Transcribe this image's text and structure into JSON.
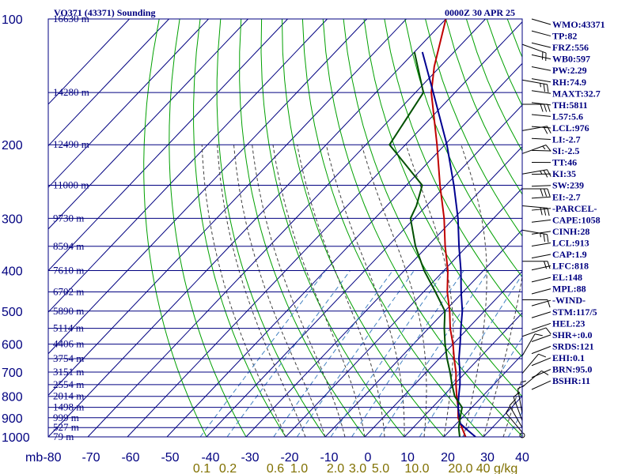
{
  "header": {
    "station": "VO371 (43371) Sounding",
    "time": "0000Z 30 APR 25"
  },
  "indices": [
    "WMO:43371",
    "TP:82",
    "FRZ:556",
    "WB0:597",
    "PW:2.29",
    "RH:74.9",
    "MAXT:32.7",
    "TH:5811",
    "L57:5.6",
    "LCL:976",
    "LI:-2.7",
    "SI:-2.5",
    "TT:46",
    "KI:35",
    "SW:239",
    "EI:-2.7",
    "-PARCEL-",
    "CAPE:1058",
    "CINH:28",
    "LCL:913",
    "CAP:1.9",
    "LFC:818",
    "EL:148",
    "MPL:88",
    "-WIND-",
    "STM:117/5",
    "HEL:23",
    "SHR+:0.0",
    "SRDS:121",
    "EHI:0.1",
    "BRN:95.0",
    "BSHR:11"
  ],
  "chart_data": {
    "type": "line",
    "title": "VO371 (43371) Sounding",
    "y_axis_unit": "mb",
    "y_scale": "log",
    "ylim": [
      1000,
      100
    ],
    "xlim": [
      -80,
      40
    ],
    "pressure_ticks": [
      "100",
      "200",
      "300",
      "400",
      "500",
      "600",
      "700",
      "800",
      "900",
      "1000"
    ],
    "temperature_ticks": [
      "-80",
      "-70",
      "-60",
      "-50",
      "-40",
      "-30",
      "-20",
      "-10",
      "0",
      "10",
      "20",
      "30",
      "40"
    ],
    "height_labels": [
      {
        "p": 100,
        "label": "16630 m"
      },
      {
        "p": 150,
        "label": "14280 m"
      },
      {
        "p": 200,
        "label": "12490 m"
      },
      {
        "p": 250,
        "label": "11000 m"
      },
      {
        "p": 300,
        "label": "9730 m"
      },
      {
        "p": 350,
        "label": "8594 m"
      },
      {
        "p": 400,
        "label": "7610 m"
      },
      {
        "p": 450,
        "label": "6702 m"
      },
      {
        "p": 500,
        "label": "5890 m"
      },
      {
        "p": 550,
        "label": "5114 m"
      },
      {
        "p": 600,
        "label": "4406 m"
      },
      {
        "p": 650,
        "label": "3754 m"
      },
      {
        "p": 700,
        "label": "3151 m"
      },
      {
        "p": 750,
        "label": "2554 m"
      },
      {
        "p": 800,
        "label": "2014 m"
      },
      {
        "p": 850,
        "label": "1498 m"
      },
      {
        "p": 900,
        "label": "999 m"
      },
      {
        "p": 950,
        "label": "527 m"
      },
      {
        "p": 1000,
        "label": "79 m"
      }
    ],
    "mixing_ratio_labels": [
      "0.1",
      "0.2",
      "0.6",
      "1.0",
      "2.0",
      "3.0",
      "5.0",
      "10.0",
      "20.0",
      "40 g/kg"
    ],
    "mixing_ratio_values": [
      0.1,
      0.2,
      0.6,
      1.0,
      2.0,
      3.0,
      5.0,
      10.0,
      20.0,
      40.0
    ],
    "series": [
      {
        "color": "#c00000",
        "points": [
          [
            1000,
            25.5
          ],
          [
            950,
            22.3
          ],
          [
            900,
            19
          ],
          [
            850,
            16.5
          ],
          [
            800,
            13.5
          ],
          [
            750,
            10.5
          ],
          [
            700,
            7.5
          ],
          [
            650,
            3.8
          ],
          [
            600,
            0
          ],
          [
            550,
            -4.5
          ],
          [
            500,
            -8.8
          ],
          [
            450,
            -14
          ],
          [
            400,
            -19
          ],
          [
            350,
            -25.5
          ],
          [
            300,
            -32.5
          ],
          [
            250,
            -41.5
          ],
          [
            200,
            -52
          ],
          [
            150,
            -66
          ],
          [
            130,
            -71.5
          ],
          [
            100,
            -80
          ]
        ]
      },
      {
        "color": "#000090",
        "points": [
          [
            1000,
            28
          ],
          [
            960,
            24
          ],
          [
            930,
            21
          ],
          [
            900,
            19.3
          ],
          [
            850,
            16.5
          ],
          [
            800,
            14
          ],
          [
            750,
            11.5
          ],
          [
            700,
            8.5
          ],
          [
            650,
            5
          ],
          [
            600,
            1.8
          ],
          [
            550,
            -1.8
          ],
          [
            500,
            -5.6
          ],
          [
            450,
            -10.5
          ],
          [
            400,
            -15.7
          ],
          [
            350,
            -22
          ],
          [
            300,
            -29
          ],
          [
            250,
            -38
          ],
          [
            200,
            -49.5
          ],
          [
            150,
            -65.5
          ],
          [
            120,
            -78
          ]
        ]
      },
      {
        "color": "#005000",
        "points": [
          [
            1000,
            24
          ],
          [
            950,
            21.5
          ],
          [
            900,
            19.5
          ],
          [
            850,
            17.5
          ],
          [
            800,
            13
          ],
          [
            750,
            9.5
          ],
          [
            700,
            6
          ],
          [
            650,
            2
          ],
          [
            600,
            -2
          ],
          [
            550,
            -6
          ],
          [
            500,
            -10
          ],
          [
            450,
            -17
          ],
          [
            400,
            -25
          ],
          [
            350,
            -33
          ],
          [
            300,
            -41
          ],
          [
            280,
            -42.5
          ],
          [
            250,
            -46
          ],
          [
            200,
            -64
          ],
          [
            150,
            -68
          ],
          [
            120,
            -80
          ]
        ]
      }
    ],
    "wind_barbs": [
      {
        "p": 115,
        "dir": 290,
        "kt": 20
      },
      {
        "p": 140,
        "dir": 280,
        "kt": 25
      },
      {
        "p": 160,
        "dir": 270,
        "kt": 30
      },
      {
        "p": 185,
        "dir": 260,
        "kt": 20
      },
      {
        "p": 210,
        "dir": 250,
        "kt": 15
      },
      {
        "p": 235,
        "dir": 260,
        "kt": 25
      },
      {
        "p": 255,
        "dir": 270,
        "kt": 30
      },
      {
        "p": 280,
        "dir": 275,
        "kt": 30
      },
      {
        "p": 320,
        "dir": 280,
        "kt": 25
      },
      {
        "p": 380,
        "dir": 270,
        "kt": 20
      },
      {
        "p": 470,
        "dir": 270,
        "kt": 10
      },
      {
        "p": 575,
        "dir": 250,
        "kt": 10
      },
      {
        "p": 640,
        "dir": 210,
        "kt": 10
      },
      {
        "p": 705,
        "dir": 220,
        "kt": 10
      },
      {
        "p": 760,
        "dir": 230,
        "kt": 10
      },
      {
        "p": 850,
        "dir": 180,
        "kt": 5
      },
      {
        "p": 880,
        "dir": 170,
        "kt": 10
      },
      {
        "p": 915,
        "dir": 160,
        "kt": 10
      },
      {
        "p": 950,
        "dir": 150,
        "kt": 10
      },
      {
        "p": 975,
        "dir": 140,
        "kt": 10
      }
    ],
    "colors": {
      "frame": "#000080",
      "isobar": "#000080",
      "isotherm": "#000080",
      "dry_adiabat": "#00a000",
      "moist_adiabat": "#404040",
      "mixing_ratio": "#4080c0",
      "mixing_label": "#807000"
    }
  }
}
